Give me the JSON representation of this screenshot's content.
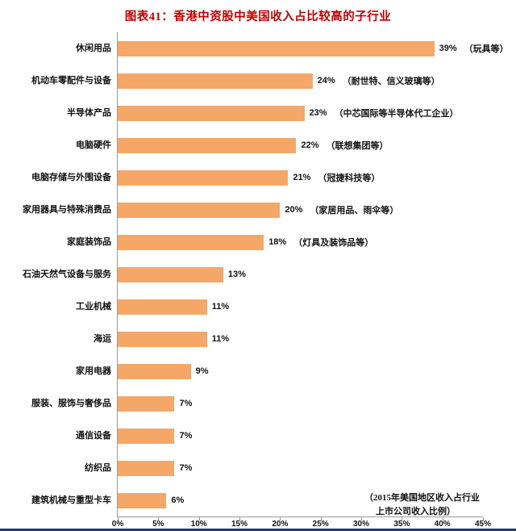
{
  "title": "图表41：香港中资股中美国收入占比较高的子行业",
  "chart_data": {
    "type": "bar",
    "orientation": "horizontal",
    "title": "图表41：香港中资股中美国收入占比较高的子行业",
    "categories": [
      "休闲用品",
      "机动车零配件与设备",
      "半导体产品",
      "电脑硬件",
      "电脑存储与外围设备",
      "家用器具与特殊消费品",
      "家庭装饰品",
      "石油天然气设备与服务",
      "工业机械",
      "海运",
      "家用电器",
      "服装、服饰与奢侈品",
      "通信设备",
      "纺织品",
      "建筑机械与重型卡车"
    ],
    "values": [
      39,
      24,
      23,
      22,
      21,
      20,
      18,
      13,
      11,
      11,
      9,
      7,
      7,
      7,
      6
    ],
    "value_suffix": "%",
    "notes": [
      "（玩具等）",
      "（耐世特、信义玻璃等）",
      "（中芯国际等半导体代工企业）",
      "（联想集团等）",
      "（冠捷科技等）",
      "（家居用品、雨伞等）",
      "（灯具及装饰品等）",
      "",
      "",
      "",
      "",
      "",
      "",
      "",
      ""
    ],
    "xlim": [
      0,
      45
    ],
    "x_ticks": [
      "0%",
      "5%",
      "10%",
      "15%",
      "20%",
      "25%",
      "30%",
      "35%",
      "40%",
      "45%"
    ],
    "annotation_line1": "（2015年美国地区收入占行业",
    "annotation_line2": "上市公司收入比例）",
    "legend": "none",
    "grid": "off"
  },
  "colors": {
    "title": "#C00000",
    "bar": "#F5A768",
    "axis": "#9A9A9A",
    "text": "#111111",
    "footer_line": "#1E3A6E"
  }
}
